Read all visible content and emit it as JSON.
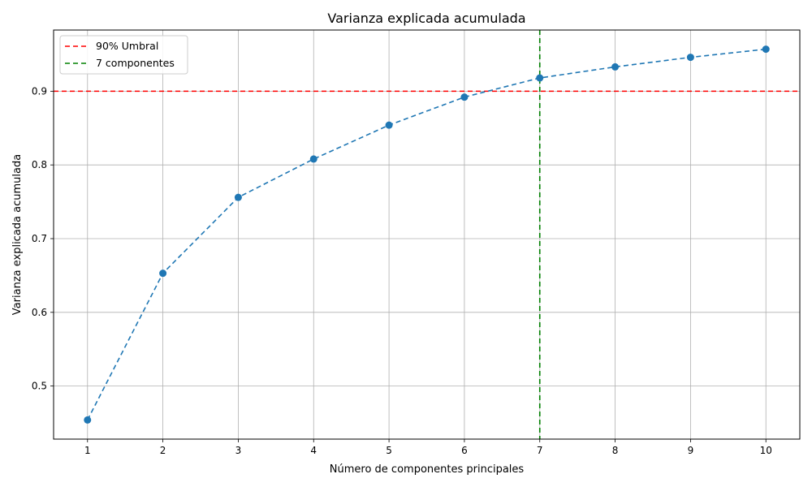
{
  "chart_data": {
    "type": "line",
    "title": "Varianza explicada acumulada",
    "xlabel": "Número de componentes principales",
    "ylabel": "Varianza explicada acumulada",
    "x": [
      1,
      2,
      3,
      4,
      5,
      6,
      7,
      8,
      9,
      10
    ],
    "x_tick_labels": [
      "1",
      "2",
      "3",
      "4",
      "5",
      "6",
      "7",
      "8",
      "9",
      "10"
    ],
    "y_ticks": [
      0.5,
      0.6,
      0.7,
      0.8,
      0.9
    ],
    "y_tick_labels": [
      "0.5",
      "0.6",
      "0.7",
      "0.8",
      "0.9"
    ],
    "xlim": [
      0.55,
      10.45
    ],
    "ylim": [
      0.428,
      0.983
    ],
    "grid": true,
    "legend_position": "top-left",
    "series": [
      {
        "values": [
          0.454,
          0.653,
          0.756,
          0.808,
          0.854,
          0.892,
          0.918,
          0.933,
          0.946,
          0.957
        ],
        "color": "#1f77b4",
        "line_style": "dashed",
        "marker": "circle"
      }
    ],
    "reference_lines": [
      {
        "orientation": "horizontal",
        "value": 0.9,
        "label": "90% Umbral",
        "color": "#ff0000",
        "line_style": "dashed"
      },
      {
        "orientation": "vertical",
        "value": 7,
        "label": "7 componentes",
        "color": "#008000",
        "line_style": "dashed"
      }
    ]
  }
}
